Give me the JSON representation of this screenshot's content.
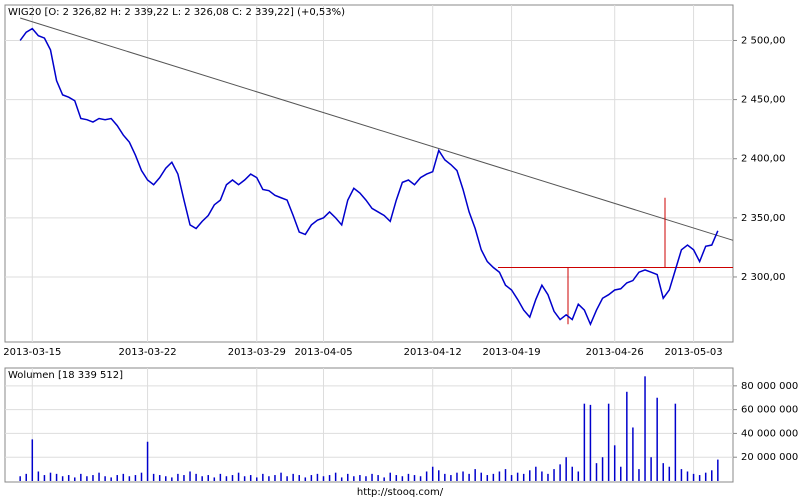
{
  "chart_data": {
    "type": "line",
    "title": "WIG20 [O: 2 326,82  H: 2 339,22  L: 2 326,08  C: 2 339,22] (+0,53%)",
    "source": "http://stooq.com/",
    "categories": [
      null,
      null,
      null,
      null,
      "2013-03-15",
      null,
      null,
      null,
      null,
      null,
      null,
      null,
      null,
      null,
      null,
      null,
      null,
      null,
      null,
      null,
      null,
      null,
      null,
      "2013-03-22",
      null,
      null,
      null,
      null,
      null,
      null,
      null,
      null,
      null,
      null,
      null,
      null,
      null,
      null,
      null,
      null,
      null,
      "2013-03-29",
      null,
      null,
      null,
      null,
      null,
      null,
      null,
      null,
      null,
      null,
      "2013-04-05",
      null,
      null,
      null,
      null,
      null,
      null,
      null,
      null,
      null,
      null,
      null,
      null,
      null,
      null,
      null,
      null,
      null,
      "2013-04-12",
      null,
      null,
      null,
      null,
      null,
      null,
      null,
      null,
      null,
      null,
      null,
      null,
      "2013-04-19",
      null,
      null,
      null,
      null,
      null,
      null,
      null,
      null,
      null,
      null,
      null,
      null,
      null,
      null,
      null,
      null,
      "2013-04-26",
      null,
      null,
      null,
      null,
      null,
      null,
      null,
      null,
      null,
      null,
      null,
      null,
      "2013-05-03",
      null,
      null,
      null,
      null,
      null,
      null
    ],
    "color": "#0000cc",
    "values": [
      null,
      null,
      2500,
      2507,
      2510,
      2504,
      2502,
      2492,
      2466,
      2454,
      2452,
      2449,
      2434,
      2433,
      2431,
      2434,
      2433,
      2434,
      2428,
      2420,
      2414,
      2403,
      2390,
      2382,
      2378,
      2384,
      2392,
      2397,
      2387,
      2365,
      2344,
      2341,
      2347,
      2352,
      2361,
      2365,
      2378,
      2382,
      2378,
      2382,
      2387,
      2384,
      2374,
      2373,
      2369,
      2367,
      2365,
      2352,
      2338,
      2336,
      2344,
      2348,
      2350,
      2355,
      2350,
      2344,
      2365,
      2375,
      2371,
      2365,
      2358,
      2355,
      2352,
      2347,
      2365,
      2380,
      2382,
      2378,
      2384,
      2387,
      2389,
      2407,
      2399,
      2395,
      2390,
      2374,
      2355,
      2341,
      2323,
      2313,
      2308,
      2304,
      2293,
      2289,
      2281,
      2272,
      2266,
      2281,
      2293,
      2285,
      2271,
      2264,
      2268,
      2264,
      2277,
      2272,
      2260,
      2272,
      2282,
      2285,
      2289,
      2290,
      2295,
      2297,
      2304,
      2306,
      2304,
      2302,
      2282,
      2289,
      2306,
      2323,
      2327,
      2323,
      2313,
      2326,
      2327,
      2339,
      null,
      null
    ],
    "ylim": [
      2245,
      2530
    ],
    "yticks": [
      {
        "value": 2300,
        "label": "2 300,00"
      },
      {
        "value": 2350,
        "label": "2 350,00"
      },
      {
        "value": 2400,
        "label": "2 400,00"
      },
      {
        "value": 2450,
        "label": "2 450,00"
      },
      {
        "value": 2500,
        "label": "2 500,00"
      }
    ],
    "grid": true,
    "trend_line": {
      "values": [
        2519,
        2331
      ],
      "color": "#555555"
    },
    "level": {
      "value": 2308,
      "color": "#cc0000"
    },
    "markers": [
      {
        "low": 2260,
        "high": 2308
      },
      {
        "low": 2308,
        "high": 2367
      }
    ],
    "volume": {
      "label": "Wolumen [18 339 512]",
      "values": [
        null,
        null,
        4000000,
        6000000,
        35000000,
        8000000,
        5000000,
        7000000,
        6000000,
        4000000,
        5000000,
        3000000,
        6000000,
        4000000,
        5000000,
        7000000,
        4000000,
        3000000,
        5000000,
        6000000,
        4000000,
        5000000,
        7000000,
        33000000,
        6000000,
        5000000,
        4000000,
        3000000,
        6000000,
        5000000,
        8000000,
        6000000,
        4000000,
        5000000,
        3000000,
        6000000,
        4000000,
        5000000,
        7000000,
        4000000,
        5000000,
        3000000,
        6000000,
        4000000,
        5000000,
        7000000,
        4000000,
        6000000,
        5000000,
        3000000,
        5000000,
        6000000,
        4000000,
        5000000,
        7000000,
        3000000,
        6000000,
        4000000,
        5000000,
        4000000,
        6000000,
        5000000,
        3000000,
        7000000,
        5000000,
        4000000,
        6000000,
        5000000,
        4000000,
        8000000,
        12000000,
        9000000,
        6000000,
        5000000,
        7000000,
        8000000,
        6000000,
        10000000,
        7000000,
        5000000,
        6000000,
        8000000,
        10000000,
        5000000,
        7000000,
        6000000,
        9000000,
        12000000,
        8000000,
        6000000,
        10000000,
        14000000,
        20000000,
        12000000,
        8000000,
        65000000,
        64000000,
        15000000,
        20000000,
        65000000,
        30000000,
        12000000,
        75000000,
        45000000,
        10000000,
        88000000,
        20000000,
        70000000,
        15000000,
        12000000,
        65000000,
        10000000,
        8000000,
        6000000,
        5000000,
        7000000,
        9000000,
        18000000,
        null,
        null
      ],
      "ylim": [
        0,
        95000000
      ],
      "yticks": [
        {
          "value": 20000000,
          "label": "20 000 000"
        },
        {
          "value": 40000000,
          "label": "40 000 000"
        },
        {
          "value": 60000000,
          "label": "60 000 000"
        },
        {
          "value": 80000000,
          "label": "80 000 000"
        }
      ]
    }
  }
}
